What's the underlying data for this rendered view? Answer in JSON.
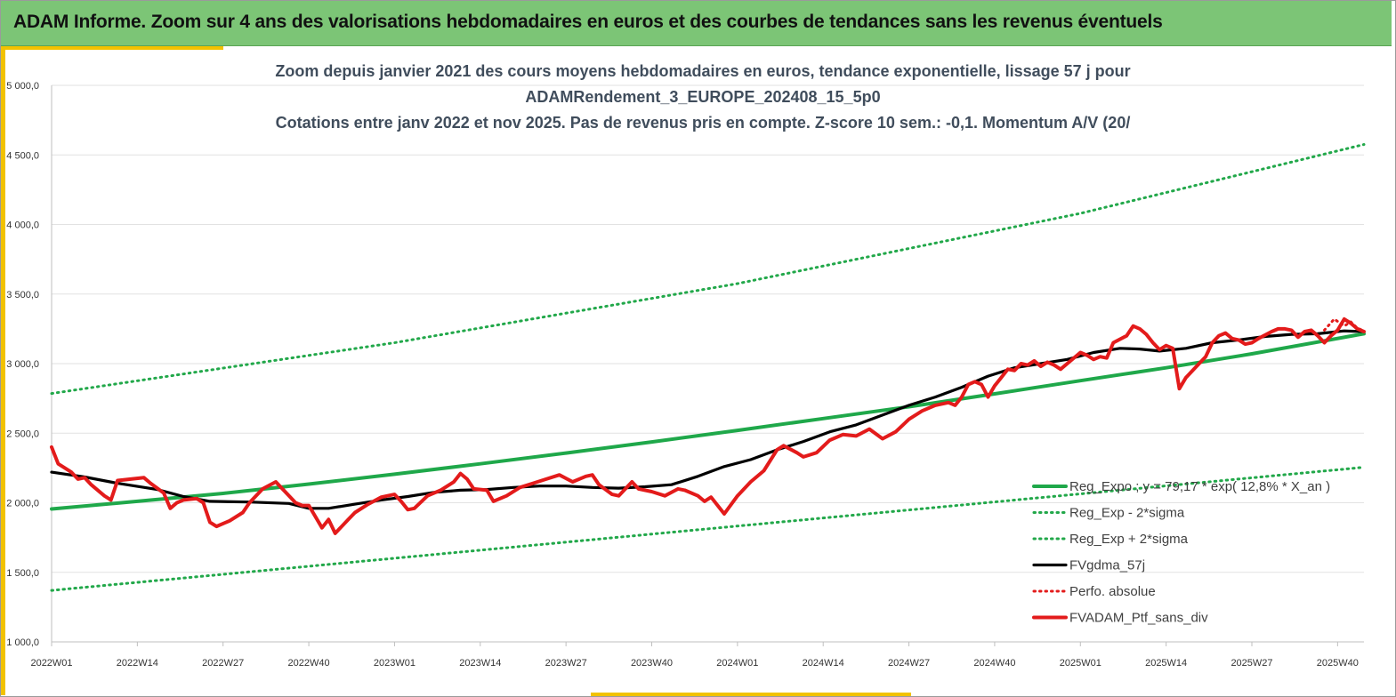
{
  "banner": {
    "title": "ADAM Informe. Zoom sur 4 ans des valorisations hebdomadaires en euros et des courbes de tendances sans les revenus éventuels"
  },
  "colors": {
    "banner": "#7cc576",
    "accent": "#f2c200",
    "title_text": "#404d5c",
    "reg_expo": "#1fa84a",
    "sigma": "#22a84a",
    "fvgdma": "#000000",
    "perfo": "#e31b1b",
    "fvadam": "#e31b1b",
    "grid": "#e2e2e2"
  },
  "chart_data": {
    "type": "line",
    "title": [
      "Zoom depuis janvier 2021 des cours moyens hebdomadaires  en euros, tendance exponentielle, lissage 57 j pour",
      "ADAMRendement_3_EUROPE_202408_15_5p0",
      "Cotations entre janv 2022 et nov 2025. Pas de revenus pris en compte. Z-score 10 sem.: -0,1. Momentum A/V (20/"
    ],
    "xlabel": "",
    "ylabel": "",
    "ylim": [
      1000,
      5000
    ],
    "xlim": [
      0,
      199
    ],
    "grid": true,
    "legend_position": "bottom-right",
    "y_ticks": [
      1000,
      1500,
      2000,
      2500,
      3000,
      3500,
      4000,
      4500,
      5000
    ],
    "y_tick_labels": [
      "1 000,0",
      "1 500,0",
      "2 000,0",
      "2 500,0",
      "3 000,0",
      "3 500,0",
      "4 000,0",
      "4 500,0",
      "5 000,0"
    ],
    "x_ticks": [
      0,
      13,
      26,
      39,
      52,
      65,
      78,
      91,
      104,
      117,
      130,
      143,
      156,
      169,
      182,
      195
    ],
    "x_tick_labels": [
      "2022W01",
      "2022W14",
      "2022W27",
      "2022W40",
      "2023W01",
      "2023W14",
      "2023W27",
      "2023W40",
      "2024W01",
      "2024W14",
      "2024W27",
      "2024W40",
      "2025W01",
      "2025W14",
      "2025W27",
      "2025W40"
    ],
    "series": [
      {
        "name": "Reg_Expo ; y = 79,17 * exp( 12,8% *  X_an )",
        "style": "solid-thick",
        "color": "#1fa84a",
        "points": [
          [
            0,
            1955
          ],
          [
            13,
            2010
          ],
          [
            26,
            2067
          ],
          [
            39,
            2134
          ],
          [
            52,
            2205
          ],
          [
            65,
            2280
          ],
          [
            78,
            2357
          ],
          [
            91,
            2437
          ],
          [
            104,
            2520
          ],
          [
            117,
            2605
          ],
          [
            130,
            2690
          ],
          [
            143,
            2783
          ],
          [
            156,
            2877
          ],
          [
            169,
            2970
          ],
          [
            182,
            3070
          ],
          [
            199,
            3215
          ]
        ]
      },
      {
        "name": "Reg_Exp - 2*sigma",
        "style": "dotted",
        "color": "#22a84a",
        "points": [
          [
            0,
            1370
          ],
          [
            199,
            2255
          ]
        ]
      },
      {
        "name": "Reg_Exp + 2*sigma",
        "style": "dotted",
        "color": "#22a84a",
        "points": [
          [
            0,
            2785
          ],
          [
            52,
            3150
          ],
          [
            104,
            3575
          ],
          [
            156,
            4080
          ],
          [
            199,
            4575
          ]
        ]
      },
      {
        "name": "FVgdma_57j",
        "style": "solid",
        "color": "#000000",
        "points": [
          [
            0,
            2220
          ],
          [
            5,
            2185
          ],
          [
            10,
            2140
          ],
          [
            16,
            2095
          ],
          [
            20,
            2045
          ],
          [
            24,
            2010
          ],
          [
            30,
            2005
          ],
          [
            36,
            1995
          ],
          [
            39,
            1960
          ],
          [
            42,
            1960
          ],
          [
            46,
            1990
          ],
          [
            50,
            2020
          ],
          [
            54,
            2045
          ],
          [
            58,
            2075
          ],
          [
            62,
            2090
          ],
          [
            66,
            2095
          ],
          [
            70,
            2110
          ],
          [
            74,
            2120
          ],
          [
            78,
            2120
          ],
          [
            82,
            2110
          ],
          [
            86,
            2105
          ],
          [
            90,
            2115
          ],
          [
            94,
            2130
          ],
          [
            98,
            2190
          ],
          [
            102,
            2260
          ],
          [
            106,
            2310
          ],
          [
            110,
            2380
          ],
          [
            114,
            2440
          ],
          [
            118,
            2510
          ],
          [
            122,
            2560
          ],
          [
            126,
            2630
          ],
          [
            130,
            2700
          ],
          [
            134,
            2760
          ],
          [
            138,
            2830
          ],
          [
            142,
            2910
          ],
          [
            146,
            2970
          ],
          [
            150,
            3000
          ],
          [
            154,
            3030
          ],
          [
            158,
            3080
          ],
          [
            162,
            3110
          ],
          [
            165,
            3105
          ],
          [
            168,
            3090
          ],
          [
            172,
            3110
          ],
          [
            176,
            3150
          ],
          [
            180,
            3170
          ],
          [
            184,
            3195
          ],
          [
            188,
            3210
          ],
          [
            192,
            3215
          ],
          [
            196,
            3235
          ],
          [
            199,
            3230
          ]
        ]
      },
      {
        "name": "Perfo. absolue",
        "style": "dotted",
        "color": "#e31b1b",
        "points": [
          [
            193,
            3240
          ],
          [
            194.5,
            3320
          ],
          [
            196,
            3270
          ],
          [
            197,
            3300
          ],
          [
            198,
            3255
          ],
          [
            199,
            3235
          ]
        ]
      },
      {
        "name": "FVADAM_Ptf_sans_div",
        "style": "solid-thick",
        "color": "#e31b1b",
        "points": [
          [
            0,
            2400
          ],
          [
            1,
            2280
          ],
          [
            3,
            2220
          ],
          [
            4,
            2170
          ],
          [
            5,
            2180
          ],
          [
            6,
            2130
          ],
          [
            8,
            2050
          ],
          [
            9,
            2020
          ],
          [
            10,
            2160
          ],
          [
            12,
            2170
          ],
          [
            14,
            2180
          ],
          [
            15,
            2140
          ],
          [
            17,
            2070
          ],
          [
            18,
            1960
          ],
          [
            19,
            2000
          ],
          [
            20,
            2020
          ],
          [
            22,
            2030
          ],
          [
            23,
            2000
          ],
          [
            24,
            1860
          ],
          [
            25,
            1830
          ],
          [
            27,
            1870
          ],
          [
            29,
            1930
          ],
          [
            30,
            2000
          ],
          [
            32,
            2100
          ],
          [
            34,
            2150
          ],
          [
            35,
            2100
          ],
          [
            37,
            2000
          ],
          [
            38,
            1980
          ],
          [
            39,
            1980
          ],
          [
            40,
            1900
          ],
          [
            41,
            1820
          ],
          [
            42,
            1880
          ],
          [
            43,
            1780
          ],
          [
            45,
            1880
          ],
          [
            46,
            1930
          ],
          [
            48,
            1990
          ],
          [
            50,
            2040
          ],
          [
            52,
            2060
          ],
          [
            53,
            2010
          ],
          [
            54,
            1950
          ],
          [
            55,
            1960
          ],
          [
            57,
            2050
          ],
          [
            59,
            2090
          ],
          [
            61,
            2150
          ],
          [
            62,
            2210
          ],
          [
            63,
            2170
          ],
          [
            64,
            2100
          ],
          [
            66,
            2090
          ],
          [
            67,
            2010
          ],
          [
            69,
            2050
          ],
          [
            71,
            2110
          ],
          [
            73,
            2140
          ],
          [
            75,
            2170
          ],
          [
            77,
            2200
          ],
          [
            79,
            2150
          ],
          [
            81,
            2190
          ],
          [
            82,
            2200
          ],
          [
            83,
            2130
          ],
          [
            85,
            2060
          ],
          [
            86,
            2050
          ],
          [
            88,
            2150
          ],
          [
            89,
            2100
          ],
          [
            91,
            2080
          ],
          [
            93,
            2050
          ],
          [
            95,
            2100
          ],
          [
            96,
            2090
          ],
          [
            98,
            2050
          ],
          [
            99,
            2010
          ],
          [
            100,
            2040
          ],
          [
            102,
            1920
          ],
          [
            104,
            2050
          ],
          [
            106,
            2150
          ],
          [
            108,
            2230
          ],
          [
            110,
            2380
          ],
          [
            111,
            2410
          ],
          [
            113,
            2360
          ],
          [
            114,
            2330
          ],
          [
            116,
            2360
          ],
          [
            118,
            2450
          ],
          [
            120,
            2490
          ],
          [
            122,
            2480
          ],
          [
            124,
            2530
          ],
          [
            126,
            2460
          ],
          [
            128,
            2510
          ],
          [
            130,
            2600
          ],
          [
            132,
            2660
          ],
          [
            134,
            2700
          ],
          [
            136,
            2720
          ],
          [
            137,
            2700
          ],
          [
            138,
            2760
          ],
          [
            139,
            2850
          ],
          [
            140,
            2870
          ],
          [
            141,
            2850
          ],
          [
            142,
            2760
          ],
          [
            143,
            2840
          ],
          [
            144,
            2900
          ],
          [
            145,
            2960
          ],
          [
            146,
            2950
          ],
          [
            147,
            3000
          ],
          [
            148,
            2990
          ],
          [
            149,
            3020
          ],
          [
            150,
            2980
          ],
          [
            151,
            3010
          ],
          [
            152,
            2990
          ],
          [
            153,
            2960
          ],
          [
            154,
            3000
          ],
          [
            156,
            3080
          ],
          [
            157,
            3060
          ],
          [
            158,
            3030
          ],
          [
            159,
            3050
          ],
          [
            160,
            3040
          ],
          [
            161,
            3150
          ],
          [
            163,
            3200
          ],
          [
            164,
            3270
          ],
          [
            165,
            3250
          ],
          [
            166,
            3210
          ],
          [
            167,
            3150
          ],
          [
            168,
            3100
          ],
          [
            169,
            3130
          ],
          [
            170,
            3110
          ],
          [
            171,
            2820
          ],
          [
            172,
            2900
          ],
          [
            174,
            3000
          ],
          [
            175,
            3050
          ],
          [
            176,
            3150
          ],
          [
            177,
            3200
          ],
          [
            178,
            3220
          ],
          [
            179,
            3180
          ],
          [
            180,
            3170
          ],
          [
            181,
            3140
          ],
          [
            182,
            3150
          ],
          [
            183,
            3180
          ],
          [
            185,
            3230
          ],
          [
            186,
            3250
          ],
          [
            187,
            3250
          ],
          [
            188,
            3240
          ],
          [
            189,
            3190
          ],
          [
            190,
            3230
          ],
          [
            191,
            3240
          ],
          [
            192,
            3200
          ],
          [
            193,
            3150
          ],
          [
            194,
            3200
          ],
          [
            195,
            3240
          ],
          [
            196,
            3320
          ],
          [
            197,
            3290
          ],
          [
            198,
            3250
          ],
          [
            199,
            3230
          ]
        ]
      }
    ]
  }
}
